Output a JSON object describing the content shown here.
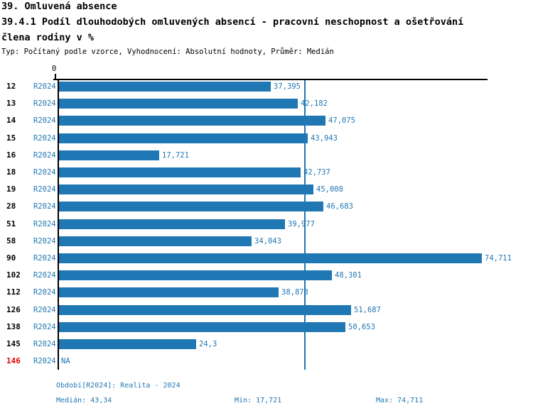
{
  "page": {
    "title_line1": "39. Omluvená absence",
    "title_line2": "39.4.1 Podíl dlouhodobých omluvených absencí - pracovní neschopnost a ošetřování",
    "title_line3": "člena rodiny v %",
    "meta_line": "Typ: Počítaný podle vzorce, Vyhodnocení: Absolutní hodnoty, Průměr: Medián"
  },
  "chart_data": {
    "type": "bar",
    "orientation": "horizontal",
    "title": "39.4.1 Podíl dlouhodobých omluvených absencí - pracovní neschopnost a ošetřování člena rodiny v %",
    "series_label": "R2024",
    "axis": {
      "origin_label": "0",
      "max": 75.75,
      "grid": false
    },
    "median_line_value": 43.34,
    "rows": [
      {
        "id": "12",
        "period": "R2024",
        "value": 37.395,
        "value_label": "37,395",
        "highlight": false
      },
      {
        "id": "13",
        "period": "R2024",
        "value": 42.182,
        "value_label": "42,182",
        "highlight": false
      },
      {
        "id": "14",
        "period": "R2024",
        "value": 47.075,
        "value_label": "47,075",
        "highlight": false
      },
      {
        "id": "15",
        "period": "R2024",
        "value": 43.943,
        "value_label": "43,943",
        "highlight": false
      },
      {
        "id": "16",
        "period": "R2024",
        "value": 17.721,
        "value_label": "17,721",
        "highlight": false
      },
      {
        "id": "18",
        "period": "R2024",
        "value": 42.737,
        "value_label": "42,737",
        "highlight": false
      },
      {
        "id": "19",
        "period": "R2024",
        "value": 45.008,
        "value_label": "45,008",
        "highlight": false
      },
      {
        "id": "28",
        "period": "R2024",
        "value": 46.683,
        "value_label": "46,683",
        "highlight": false
      },
      {
        "id": "51",
        "period": "R2024",
        "value": 39.977,
        "value_label": "39,977",
        "highlight": false
      },
      {
        "id": "58",
        "period": "R2024",
        "value": 34.043,
        "value_label": "34,043",
        "highlight": false
      },
      {
        "id": "90",
        "period": "R2024",
        "value": 74.711,
        "value_label": "74,711",
        "highlight": false
      },
      {
        "id": "102",
        "period": "R2024",
        "value": 48.301,
        "value_label": "48,301",
        "highlight": false
      },
      {
        "id": "112",
        "period": "R2024",
        "value": 38.873,
        "value_label": "38,873",
        "highlight": false
      },
      {
        "id": "126",
        "period": "R2024",
        "value": 51.687,
        "value_label": "51,687",
        "highlight": false
      },
      {
        "id": "138",
        "period": "R2024",
        "value": 50.653,
        "value_label": "50,653",
        "highlight": false
      },
      {
        "id": "145",
        "period": "R2024",
        "value": 24.3,
        "value_label": "24,3",
        "highlight": false
      },
      {
        "id": "146",
        "period": "R2024",
        "value": null,
        "value_label": "NA",
        "highlight": true
      }
    ],
    "footer": {
      "period_info": "Období[R2024]: Realita - 2024",
      "median": "Medián: 43,34",
      "min": "Min: 17,721",
      "max": "Max: 74,711"
    },
    "colors": {
      "bar": "#1f77b4",
      "text_blue": "#1f77b4",
      "highlight_red": "#e00000"
    }
  }
}
